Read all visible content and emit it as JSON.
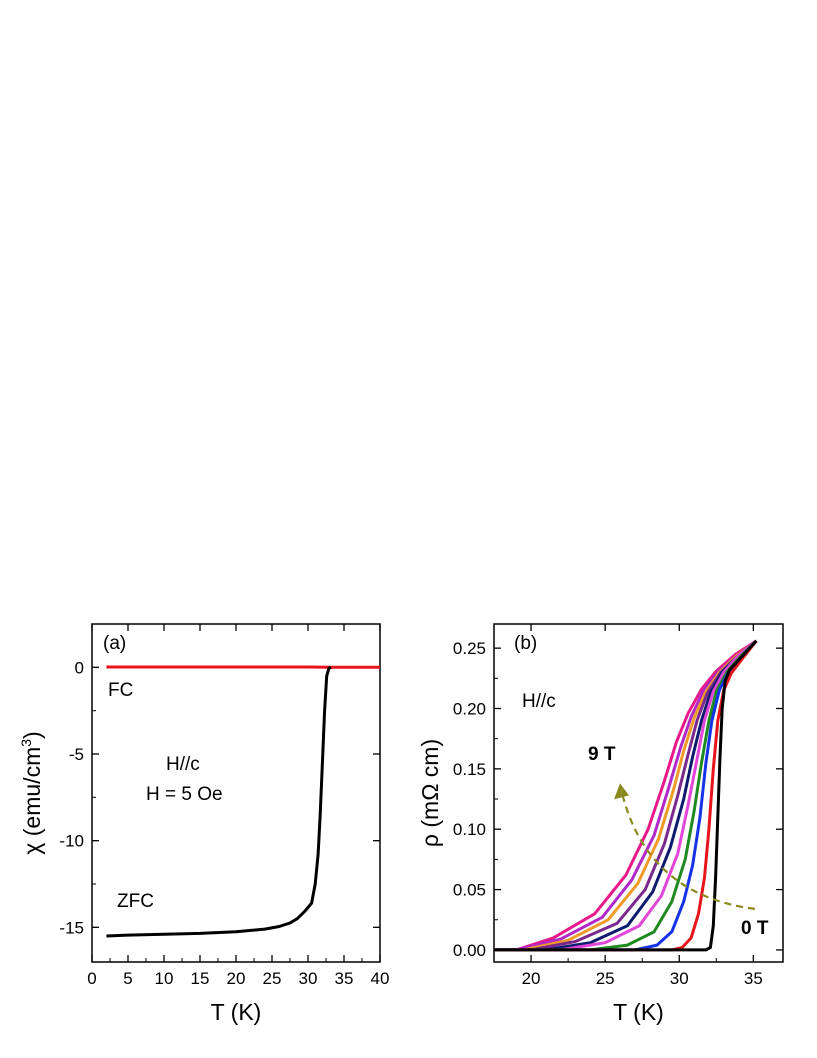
{
  "chart_data": [
    {
      "type": "line",
      "panel_label": "(a)",
      "xlabel": "T (K)",
      "ylabel": "χ (emu/cm",
      "ylabel_sup": "3",
      "ylabel_close": ")",
      "xlim": [
        0,
        40
      ],
      "ylim": [
        -17,
        2.5
      ],
      "xticks": [
        0,
        5,
        10,
        15,
        20,
        25,
        30,
        35,
        40
      ],
      "yticks": [
        0,
        -5,
        -10,
        -15
      ],
      "annotations": [
        "H//c",
        "H = 5 Oe"
      ],
      "colors": {
        "FC": "#e8141c",
        "ZFC": "#000000"
      },
      "series": [
        {
          "name": "FC",
          "x": [
            2,
            10,
            20,
            30,
            33,
            40
          ],
          "y": [
            0.02,
            0.02,
            0.02,
            0.02,
            0.0,
            0.0
          ]
        },
        {
          "name": "ZFC",
          "x": [
            2,
            5,
            10,
            15,
            20,
            24,
            26,
            27.5,
            28.5,
            29.5,
            30.5,
            31.0,
            31.4,
            31.7,
            32.0,
            32.3,
            32.6,
            32.9,
            33.2
          ],
          "y": [
            -15.5,
            -15.45,
            -15.4,
            -15.35,
            -15.25,
            -15.1,
            -14.95,
            -14.75,
            -14.5,
            -14.1,
            -13.6,
            -12.5,
            -10.8,
            -8.5,
            -5.5,
            -2.5,
            -0.5,
            -0.05,
            0.0
          ]
        }
      ]
    },
    {
      "type": "line",
      "panel_label": "(b)",
      "xlabel": "T (K)",
      "ylabel": "ρ (mΩ cm)",
      "xlim": [
        17.5,
        37
      ],
      "ylim": [
        -0.01,
        0.27
      ],
      "xticks": [
        20,
        25,
        30,
        35
      ],
      "yticks": [
        0.0,
        0.05,
        0.1,
        0.15,
        0.2,
        0.25
      ],
      "ytick_labels": [
        "0.00",
        "0.05",
        "0.10",
        "0.15",
        "0.20",
        "0.25"
      ],
      "annotations": [
        "H//c",
        "9 T",
        "0 T"
      ],
      "arrow_color": "#8a8a1e",
      "curve_colors": [
        "#000000",
        "#e8141c",
        "#1533e6",
        "#1f8a1f",
        "#e246d8",
        "#0d1b6e",
        "#7a2a8c",
        "#f09a28",
        "#b028c8",
        "#e8198a"
      ],
      "series": [
        {
          "x": [
            17.5,
            31.0,
            31.8,
            32.1,
            32.3,
            32.45,
            32.6,
            32.75,
            32.9,
            33.1,
            33.4,
            34.0,
            34.6,
            35.2
          ],
          "y": [
            0.0,
            0.0,
            0.0,
            0.002,
            0.02,
            0.06,
            0.11,
            0.16,
            0.2,
            0.223,
            0.232,
            0.24,
            0.248,
            0.256
          ]
        },
        {
          "x": [
            17.5,
            29.5,
            30.2,
            30.8,
            31.3,
            31.7,
            32.0,
            32.3,
            32.6,
            33.0,
            33.5,
            34.3,
            35.2
          ],
          "y": [
            0.0,
            0.0,
            0.002,
            0.01,
            0.03,
            0.06,
            0.1,
            0.15,
            0.19,
            0.215,
            0.229,
            0.242,
            0.256
          ]
        },
        {
          "x": [
            17.5,
            27.0,
            28.5,
            29.5,
            30.3,
            30.9,
            31.4,
            31.8,
            32.2,
            32.7,
            33.3,
            34.2,
            35.2
          ],
          "y": [
            0.0,
            0.0,
            0.004,
            0.015,
            0.04,
            0.07,
            0.11,
            0.155,
            0.19,
            0.215,
            0.23,
            0.243,
            0.256
          ]
        },
        {
          "x": [
            17.5,
            24.0,
            26.5,
            28.3,
            29.5,
            30.4,
            31.0,
            31.5,
            32.0,
            32.5,
            33.2,
            34.2,
            35.2
          ],
          "y": [
            0.0,
            0.0,
            0.004,
            0.015,
            0.04,
            0.075,
            0.115,
            0.155,
            0.19,
            0.214,
            0.23,
            0.244,
            0.256
          ]
        },
        {
          "x": [
            17.5,
            22.0,
            25.0,
            27.3,
            28.8,
            29.9,
            30.6,
            31.2,
            31.7,
            32.3,
            33.0,
            34.0,
            35.2
          ],
          "y": [
            0.0,
            0.0,
            0.006,
            0.02,
            0.045,
            0.08,
            0.12,
            0.158,
            0.19,
            0.214,
            0.23,
            0.244,
            0.256
          ]
        },
        {
          "x": [
            17.5,
            21.0,
            24.0,
            26.5,
            28.2,
            29.4,
            30.3,
            30.9,
            31.5,
            32.1,
            32.9,
            34.0,
            35.2
          ],
          "y": [
            0.0,
            0.0,
            0.006,
            0.02,
            0.048,
            0.085,
            0.125,
            0.16,
            0.19,
            0.213,
            0.23,
            0.244,
            0.256
          ]
        },
        {
          "x": [
            17.5,
            20.0,
            23.0,
            25.8,
            27.7,
            29.0,
            29.9,
            30.6,
            31.2,
            31.9,
            32.8,
            34.0,
            35.2
          ],
          "y": [
            0.0,
            0.0,
            0.007,
            0.022,
            0.05,
            0.088,
            0.128,
            0.162,
            0.19,
            0.213,
            0.23,
            0.244,
            0.256
          ]
        },
        {
          "x": [
            17.5,
            19.5,
            22.5,
            25.2,
            27.2,
            28.6,
            29.6,
            30.3,
            31.0,
            31.8,
            32.7,
            33.9,
            35.2
          ],
          "y": [
            0.0,
            0.0,
            0.008,
            0.025,
            0.055,
            0.092,
            0.132,
            0.165,
            0.192,
            0.214,
            0.23,
            0.244,
            0.256
          ]
        },
        {
          "x": [
            17.5,
            19.0,
            22.0,
            24.8,
            26.8,
            28.3,
            29.3,
            30.1,
            30.8,
            31.6,
            32.6,
            33.9,
            35.2
          ],
          "y": [
            0.0,
            0.0,
            0.009,
            0.027,
            0.058,
            0.095,
            0.135,
            0.168,
            0.193,
            0.214,
            0.23,
            0.244,
            0.256
          ]
        },
        {
          "x": [
            17.5,
            19.0,
            21.5,
            24.3,
            26.4,
            27.9,
            29.0,
            29.8,
            30.6,
            31.5,
            32.5,
            33.8,
            35.2
          ],
          "y": [
            0.0,
            0.0,
            0.01,
            0.03,
            0.062,
            0.1,
            0.14,
            0.172,
            0.196,
            0.216,
            0.231,
            0.245,
            0.256
          ]
        }
      ]
    }
  ]
}
